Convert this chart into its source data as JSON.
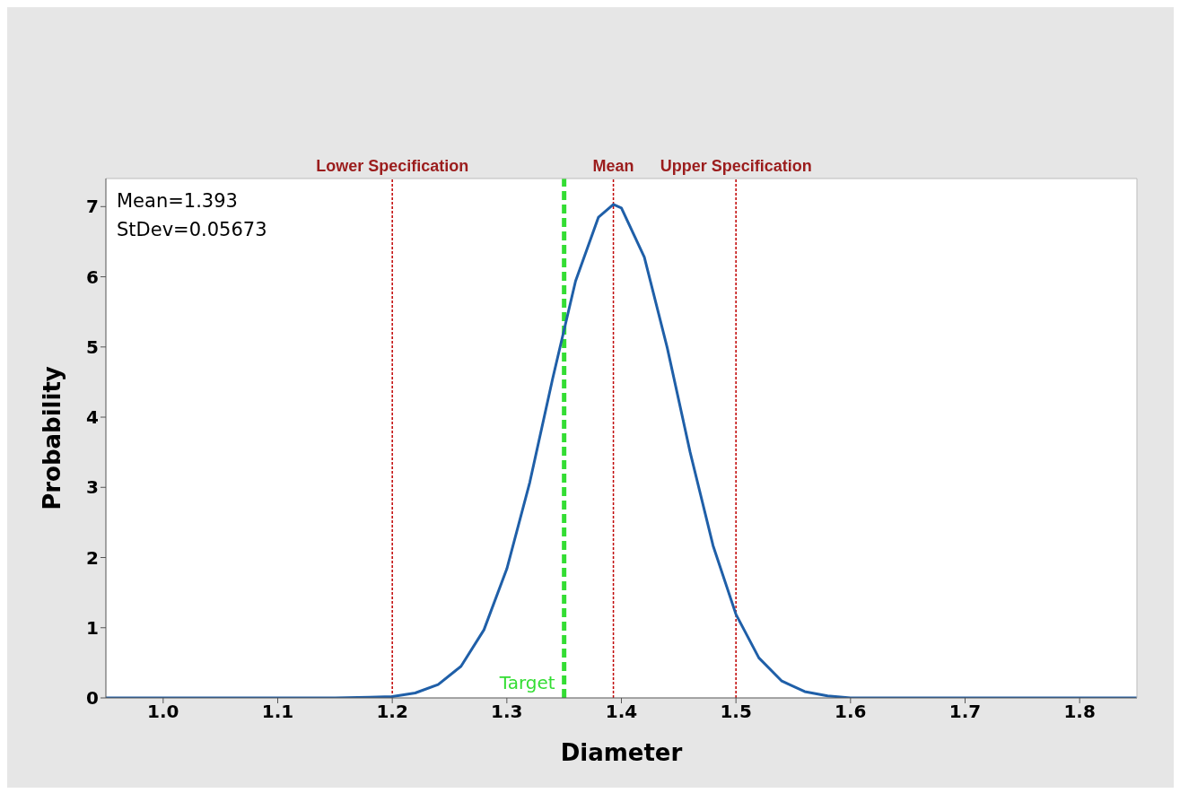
{
  "chart_data": {
    "type": "line",
    "xlabel": "Diameter",
    "ylabel": "Probability",
    "x": [
      0.95,
      1.1,
      1.15,
      1.18,
      1.2,
      1.22,
      1.24,
      1.26,
      1.28,
      1.3,
      1.32,
      1.34,
      1.36,
      1.38,
      1.393,
      1.4,
      1.42,
      1.44,
      1.46,
      1.48,
      1.5,
      1.52,
      1.54,
      1.56,
      1.58,
      1.6,
      1.7,
      1.85
    ],
    "series": [
      {
        "color": "#1f5fa8",
        "values": [
          0,
          0,
          0,
          0.01,
          0.02,
          0.07,
          0.19,
          0.45,
          0.97,
          1.84,
          3.07,
          4.55,
          5.94,
          6.85,
          7.03,
          6.98,
          6.28,
          4.99,
          3.5,
          2.17,
          1.19,
          0.57,
          0.24,
          0.09,
          0.03,
          0,
          0,
          0
        ]
      }
    ],
    "xlim": [
      0.95,
      1.85
    ],
    "ylim": [
      0,
      7.4
    ],
    "xticks": [
      {
        "value": 1,
        "label": "1.0"
      },
      1.1,
      1.2,
      1.3,
      1.4,
      1.5,
      1.6,
      1.7,
      1.8
    ],
    "yticks": [
      0,
      1,
      2,
      3,
      4,
      5,
      6,
      7
    ],
    "ref_lines": [
      {
        "axis": "x",
        "value": 1.2,
        "label": "Lower Specification",
        "color": "#c00000",
        "line_style": "dotted"
      },
      {
        "axis": "x",
        "value": 1.35,
        "label": "Target",
        "color": "#33dd33",
        "line_style": "dashed"
      },
      {
        "axis": "x",
        "value": 1.393,
        "label": "Mean",
        "color": "#c00000",
        "line_style": "dotted"
      },
      {
        "axis": "x",
        "value": 1.5,
        "label": "Upper Specification",
        "color": "#c00000",
        "line_style": "dotted"
      }
    ],
    "annotations": [
      "Mean=1.393",
      "StDev=0.05673"
    ],
    "grid": false,
    "marker": "none",
    "line_style": "solid"
  }
}
